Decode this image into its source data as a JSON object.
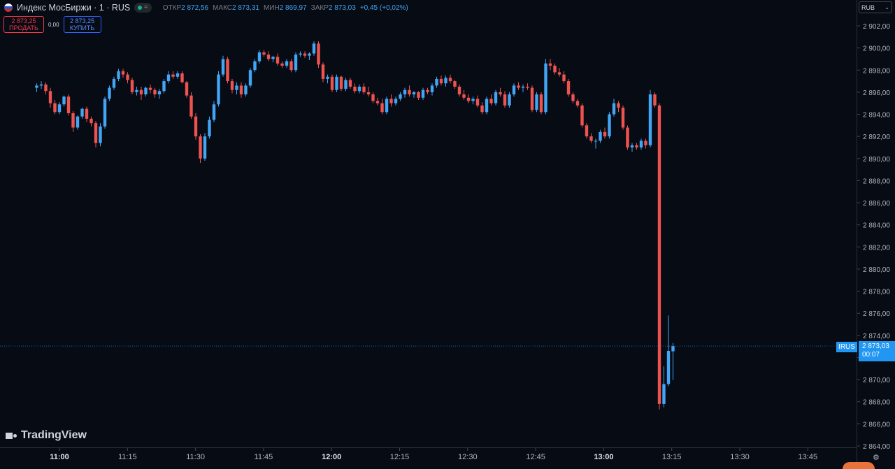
{
  "header": {
    "symbol_title": "Индекс МосБиржи · 1 · RUS",
    "ohlc": [
      {
        "label": "ОТКР",
        "value": "2 872,56"
      },
      {
        "label": "МАКС",
        "value": "2 873,31"
      },
      {
        "label": "МИН",
        "value": "2 869,97"
      },
      {
        "label": "ЗАКР",
        "value": "2 873,03"
      }
    ],
    "change": "+0,45 (+0,02%)"
  },
  "trade": {
    "sell_price": "2 873,25",
    "sell_label": "ПРОДАТЬ",
    "spread": "0,00",
    "buy_price": "2 873,25",
    "buy_label": "КУПИТЬ"
  },
  "currency": "RUB",
  "last_price": {
    "symbol": "IRUS",
    "price": "2 873,03",
    "countdown": "00:07"
  },
  "logo": "TradingView",
  "colors": {
    "up": "#42a5f5",
    "down": "#ef5350",
    "background": "#060b14",
    "accent": "#2196f3"
  },
  "chart_data": {
    "type": "candlestick",
    "timeframe_minutes": 1,
    "x_start": "10:55",
    "ylim": [
      2864,
      2904
    ],
    "y_ticks": [
      "2 864,00",
      "2 866,00",
      "2 868,00",
      "2 870,00",
      "2 872,00",
      "2 874,00",
      "2 876,00",
      "2 878,00",
      "2 880,00",
      "2 882,00",
      "2 884,00",
      "2 886,00",
      "2 888,00",
      "2 890,00",
      "2 892,00",
      "2 894,00",
      "2 896,00",
      "2 898,00",
      "2 900,00",
      "2 902,00"
    ],
    "x_ticks": [
      {
        "time": "11:00",
        "bold": true
      },
      {
        "time": "11:15",
        "bold": false
      },
      {
        "time": "11:30",
        "bold": false
      },
      {
        "time": "11:45",
        "bold": false
      },
      {
        "time": "12:00",
        "bold": true
      },
      {
        "time": "12:15",
        "bold": false
      },
      {
        "time": "12:30",
        "bold": false
      },
      {
        "time": "12:45",
        "bold": false
      },
      {
        "time": "13:00",
        "bold": true
      },
      {
        "time": "13:15",
        "bold": false
      },
      {
        "time": "13:30",
        "bold": false
      },
      {
        "time": "13:45",
        "bold": false
      }
    ],
    "last_price": 2873.03,
    "candles": [
      [
        2896.4,
        2896.8,
        2896.0,
        2896.6
      ],
      [
        2896.6,
        2897.0,
        2896.3,
        2896.7
      ],
      [
        2896.7,
        2896.9,
        2895.8,
        2896.1
      ],
      [
        2896.1,
        2896.4,
        2894.6,
        2895.0
      ],
      [
        2895.0,
        2895.3,
        2894.0,
        2894.2
      ],
      [
        2894.2,
        2895.1,
        2894.0,
        2894.9
      ],
      [
        2894.9,
        2895.7,
        2894.7,
        2895.6
      ],
      [
        2895.6,
        2895.8,
        2893.9,
        2894.1
      ],
      [
        2894.1,
        2894.3,
        2892.4,
        2892.8
      ],
      [
        2892.8,
        2893.9,
        2892.6,
        2893.8
      ],
      [
        2893.8,
        2894.6,
        2893.6,
        2894.5
      ],
      [
        2894.5,
        2894.7,
        2893.3,
        2893.6
      ],
      [
        2893.6,
        2893.8,
        2892.9,
        2893.2
      ],
      [
        2893.2,
        2893.4,
        2891.0,
        2891.4
      ],
      [
        2891.4,
        2893.2,
        2891.1,
        2892.9
      ],
      [
        2892.9,
        2895.6,
        2892.7,
        2895.4
      ],
      [
        2895.4,
        2896.6,
        2895.2,
        2896.4
      ],
      [
        2896.4,
        2897.4,
        2896.2,
        2897.2
      ],
      [
        2897.2,
        2898.1,
        2897.0,
        2897.9
      ],
      [
        2897.9,
        2898.1,
        2897.3,
        2897.6
      ],
      [
        2897.6,
        2897.8,
        2896.8,
        2897.1
      ],
      [
        2897.1,
        2897.3,
        2895.8,
        2896.0
      ],
      [
        2896.0,
        2896.5,
        2895.7,
        2896.2
      ],
      [
        2896.2,
        2896.5,
        2895.3,
        2895.8
      ],
      [
        2895.8,
        2896.5,
        2895.6,
        2896.4
      ],
      [
        2896.4,
        2896.7,
        2895.9,
        2896.2
      ],
      [
        2896.2,
        2896.4,
        2895.5,
        2895.8
      ],
      [
        2895.8,
        2896.3,
        2895.4,
        2896.1
      ],
      [
        2896.1,
        2897.2,
        2895.9,
        2897.0
      ],
      [
        2897.0,
        2897.9,
        2896.8,
        2897.6
      ],
      [
        2897.6,
        2897.9,
        2897.2,
        2897.4
      ],
      [
        2897.4,
        2897.9,
        2897.2,
        2897.7
      ],
      [
        2897.7,
        2897.9,
        2896.8,
        2896.9
      ],
      [
        2896.9,
        2897.0,
        2895.5,
        2895.7
      ],
      [
        2895.7,
        2896.0,
        2893.6,
        2893.8
      ],
      [
        2893.8,
        2894.1,
        2891.7,
        2892.0
      ],
      [
        2892.0,
        2892.2,
        2889.6,
        2890.0
      ],
      [
        2890.0,
        2892.3,
        2889.8,
        2892.0
      ],
      [
        2892.0,
        2893.8,
        2891.8,
        2893.5
      ],
      [
        2893.5,
        2895.2,
        2893.3,
        2894.9
      ],
      [
        2894.9,
        2897.9,
        2894.7,
        2897.6
      ],
      [
        2897.6,
        2899.3,
        2897.4,
        2899.0
      ],
      [
        2899.0,
        2899.2,
        2896.8,
        2897.0
      ],
      [
        2897.0,
        2897.2,
        2895.9,
        2896.2
      ],
      [
        2896.2,
        2896.9,
        2895.8,
        2896.6
      ],
      [
        2896.6,
        2896.9,
        2895.5,
        2895.8
      ],
      [
        2895.8,
        2896.8,
        2895.6,
        2896.6
      ],
      [
        2896.6,
        2898.2,
        2896.4,
        2898.0
      ],
      [
        2898.0,
        2899.0,
        2897.8,
        2898.8
      ],
      [
        2898.8,
        2899.8,
        2898.6,
        2899.6
      ],
      [
        2899.6,
        2899.8,
        2899.2,
        2899.4
      ],
      [
        2899.4,
        2899.7,
        2898.8,
        2899.0
      ],
      [
        2899.0,
        2899.3,
        2898.7,
        2899.2
      ],
      [
        2899.2,
        2899.5,
        2898.4,
        2898.6
      ],
      [
        2898.6,
        2898.8,
        2898.2,
        2898.4
      ],
      [
        2898.4,
        2899.0,
        2898.2,
        2898.8
      ],
      [
        2898.8,
        2899.0,
        2897.8,
        2898.0
      ],
      [
        2898.0,
        2899.6,
        2897.8,
        2899.4
      ],
      [
        2899.4,
        2899.7,
        2899.2,
        2899.5
      ],
      [
        2899.5,
        2899.7,
        2899.1,
        2899.3
      ],
      [
        2899.3,
        2899.6,
        2898.9,
        2899.5
      ],
      [
        2899.5,
        2900.6,
        2899.3,
        2900.4
      ],
      [
        2900.4,
        2900.6,
        2898.2,
        2898.5
      ],
      [
        2898.5,
        2898.7,
        2896.9,
        2897.2
      ],
      [
        2897.2,
        2897.6,
        2896.8,
        2897.4
      ],
      [
        2897.4,
        2897.6,
        2896.0,
        2896.2
      ],
      [
        2896.2,
        2897.6,
        2896.0,
        2897.4
      ],
      [
        2897.4,
        2897.5,
        2896.1,
        2896.3
      ],
      [
        2896.3,
        2897.3,
        2896.1,
        2897.1
      ],
      [
        2897.1,
        2897.3,
        2896.3,
        2896.5
      ],
      [
        2896.5,
        2896.8,
        2895.9,
        2896.1
      ],
      [
        2896.1,
        2896.7,
        2895.9,
        2896.5
      ],
      [
        2896.5,
        2896.8,
        2895.8,
        2896.0
      ],
      [
        2896.0,
        2896.5,
        2895.6,
        2895.8
      ],
      [
        2895.8,
        2896.0,
        2895.0,
        2895.2
      ],
      [
        2895.2,
        2895.5,
        2894.8,
        2895.0
      ],
      [
        2895.0,
        2895.4,
        2894.0,
        2894.2
      ],
      [
        2894.2,
        2895.6,
        2894.0,
        2895.4
      ],
      [
        2895.4,
        2895.8,
        2894.7,
        2895.0
      ],
      [
        2895.0,
        2895.6,
        2894.8,
        2895.4
      ],
      [
        2895.4,
        2896.0,
        2895.2,
        2895.8
      ],
      [
        2895.8,
        2896.4,
        2895.5,
        2896.2
      ],
      [
        2896.2,
        2896.6,
        2895.6,
        2895.8
      ],
      [
        2895.8,
        2896.1,
        2895.5,
        2896.0
      ],
      [
        2896.0,
        2896.1,
        2895.3,
        2895.5
      ],
      [
        2895.5,
        2896.4,
        2895.3,
        2896.2
      ],
      [
        2896.2,
        2896.4,
        2895.8,
        2896.0
      ],
      [
        2896.0,
        2896.8,
        2895.7,
        2896.6
      ],
      [
        2896.6,
        2897.4,
        2896.4,
        2897.2
      ],
      [
        2897.2,
        2897.5,
        2896.6,
        2896.8
      ],
      [
        2896.8,
        2897.5,
        2896.5,
        2897.3
      ],
      [
        2897.3,
        2897.6,
        2896.8,
        2897.0
      ],
      [
        2897.0,
        2897.1,
        2896.3,
        2896.5
      ],
      [
        2896.5,
        2896.7,
        2895.6,
        2895.8
      ],
      [
        2895.8,
        2896.2,
        2895.3,
        2895.5
      ],
      [
        2895.5,
        2895.8,
        2895.0,
        2895.2
      ],
      [
        2895.2,
        2895.6,
        2894.9,
        2895.4
      ],
      [
        2895.4,
        2895.7,
        2894.6,
        2894.8
      ],
      [
        2894.8,
        2895.1,
        2894.0,
        2894.2
      ],
      [
        2894.2,
        2895.6,
        2894.0,
        2895.4
      ],
      [
        2895.4,
        2895.8,
        2894.8,
        2895.0
      ],
      [
        2895.0,
        2896.2,
        2894.8,
        2896.0
      ],
      [
        2896.0,
        2896.4,
        2895.6,
        2895.8
      ],
      [
        2895.8,
        2896.1,
        2894.6,
        2894.8
      ],
      [
        2894.8,
        2896.0,
        2894.6,
        2895.8
      ],
      [
        2895.8,
        2896.8,
        2895.6,
        2896.6
      ],
      [
        2896.6,
        2896.9,
        2896.2,
        2896.4
      ],
      [
        2896.4,
        2896.7,
        2896.0,
        2896.5
      ],
      [
        2896.5,
        2896.8,
        2896.2,
        2896.4
      ],
      [
        2896.4,
        2896.6,
        2894.2,
        2894.4
      ],
      [
        2894.4,
        2896.0,
        2894.2,
        2895.8
      ],
      [
        2895.8,
        2896.0,
        2894.0,
        2894.2
      ],
      [
        2894.2,
        2899.0,
        2894.0,
        2898.6
      ],
      [
        2898.6,
        2899.0,
        2898.0,
        2898.4
      ],
      [
        2898.4,
        2898.6,
        2897.6,
        2897.8
      ],
      [
        2897.8,
        2898.2,
        2897.4,
        2897.6
      ],
      [
        2897.6,
        2897.9,
        2896.8,
        2897.0
      ],
      [
        2897.0,
        2897.2,
        2895.6,
        2895.8
      ],
      [
        2895.8,
        2896.0,
        2895.0,
        2895.2
      ],
      [
        2895.2,
        2895.4,
        2894.6,
        2894.8
      ],
      [
        2894.8,
        2895.0,
        2892.8,
        2893.0
      ],
      [
        2893.0,
        2893.2,
        2891.8,
        2892.0
      ],
      [
        2892.0,
        2892.3,
        2891.4,
        2891.6
      ],
      [
        2891.6,
        2891.8,
        2890.9,
        2891.6
      ],
      [
        2891.6,
        2892.6,
        2891.4,
        2892.4
      ],
      [
        2892.4,
        2892.8,
        2891.8,
        2892.0
      ],
      [
        2892.0,
        2894.2,
        2891.8,
        2894.0
      ],
      [
        2894.0,
        2895.4,
        2893.8,
        2895.0
      ],
      [
        2895.0,
        2895.2,
        2894.2,
        2894.6
      ],
      [
        2894.6,
        2894.8,
        2892.6,
        2892.8
      ],
      [
        2892.8,
        2893.0,
        2890.8,
        2891.0
      ],
      [
        2891.0,
        2891.4,
        2890.6,
        2891.2
      ],
      [
        2891.2,
        2891.4,
        2890.8,
        2891.0
      ],
      [
        2891.0,
        2891.8,
        2890.8,
        2891.6
      ],
      [
        2891.6,
        2891.8,
        2890.9,
        2891.2
      ],
      [
        2891.2,
        2896.2,
        2891.0,
        2895.8
      ],
      [
        2895.8,
        2896.0,
        2894.6,
        2894.8
      ],
      [
        2894.8,
        2895.0,
        2867.3,
        2867.8
      ],
      [
        2867.8,
        2871.2,
        2867.5,
        2869.6
      ],
      [
        2869.6,
        2875.8,
        2869.4,
        2872.6
      ],
      [
        2872.56,
        2873.31,
        2869.97,
        2873.03
      ]
    ]
  }
}
